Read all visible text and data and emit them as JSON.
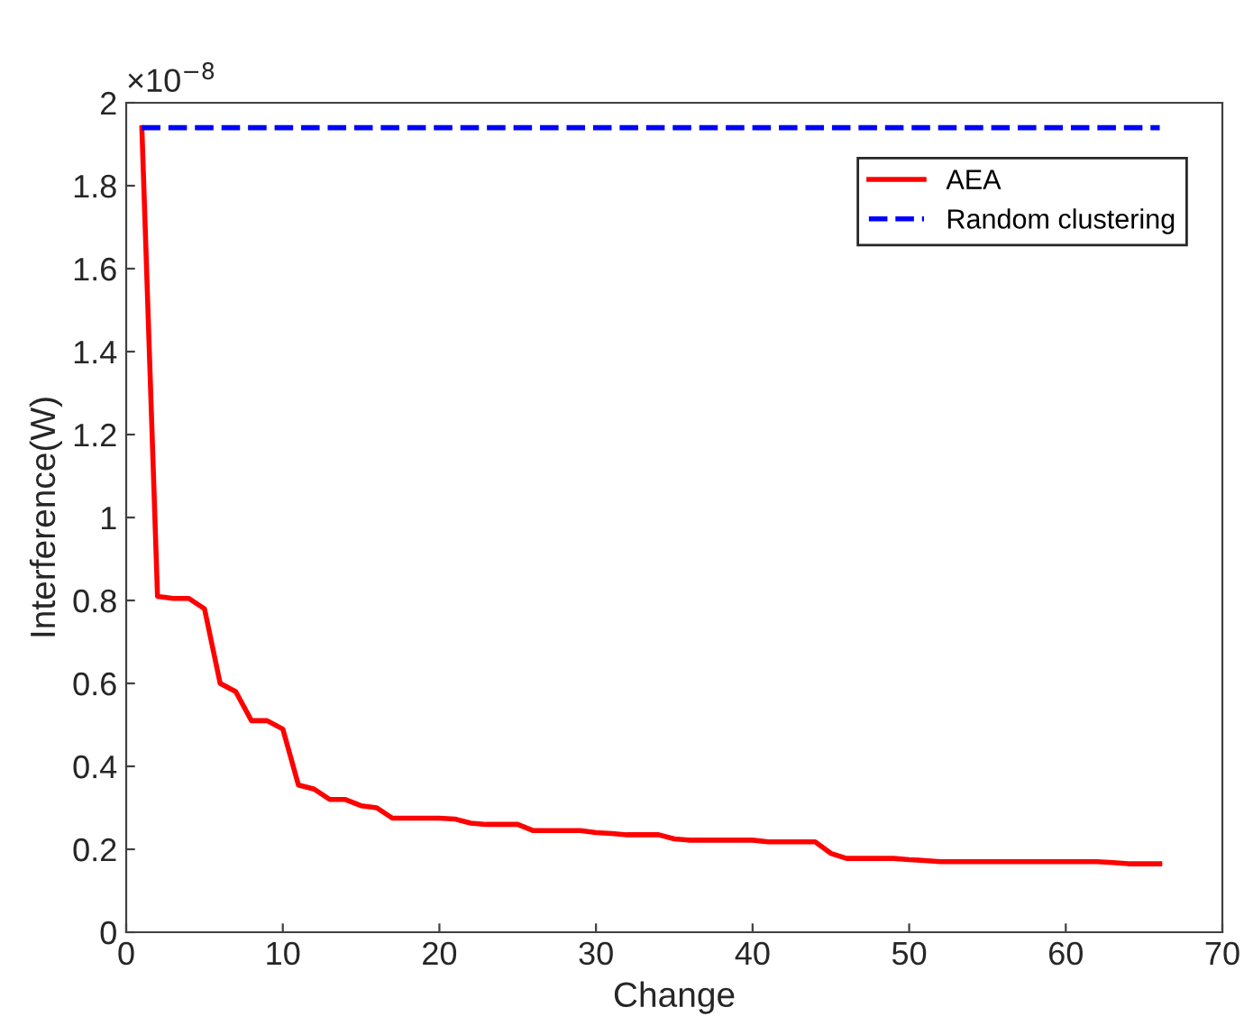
{
  "chart_data": {
    "type": "line",
    "xlabel": "Change",
    "ylabel": "Interference(W)",
    "annotations": [
      "×10$^{−8}$"
    ],
    "xlim": [
      0,
      70
    ],
    "xticks": [
      0,
      10,
      20,
      30,
      40,
      50,
      60,
      70
    ],
    "ylim": [
      0,
      2
    ],
    "yticks": [
      0,
      0.2,
      0.4,
      0.6,
      0.8,
      1,
      1.2,
      1.4,
      1.6,
      1.8,
      2
    ],
    "x": [
      1,
      2,
      3,
      4,
      5,
      6,
      7,
      8,
      9,
      10,
      11,
      12,
      13,
      14,
      15,
      16,
      17,
      18,
      19,
      20,
      21,
      22,
      23,
      24,
      25,
      26,
      27,
      28,
      29,
      30,
      31,
      32,
      33,
      34,
      35,
      36,
      37,
      38,
      39,
      40,
      41,
      42,
      43,
      44,
      45,
      46,
      47,
      48,
      49,
      50,
      51,
      52,
      53,
      54,
      55,
      56,
      57,
      58,
      59,
      60,
      61,
      62,
      63,
      64,
      65,
      66
    ],
    "series": [
      {
        "name": "AEA",
        "color": "#ff0000",
        "line_style": "solid",
        "values": [
          1.94,
          0.81,
          0.805,
          0.805,
          0.78,
          0.6,
          0.58,
          0.51,
          0.51,
          0.49,
          0.355,
          0.345,
          0.32,
          0.32,
          0.305,
          0.3,
          0.275,
          0.275,
          0.275,
          0.275,
          0.273,
          0.263,
          0.26,
          0.26,
          0.26,
          0.245,
          0.245,
          0.245,
          0.245,
          0.24,
          0.238,
          0.235,
          0.235,
          0.235,
          0.225,
          0.222,
          0.222,
          0.222,
          0.222,
          0.222,
          0.218,
          0.218,
          0.218,
          0.218,
          0.19,
          0.178,
          0.178,
          0.178,
          0.178,
          0.175,
          0.173,
          0.17,
          0.17,
          0.17,
          0.17,
          0.17,
          0.17,
          0.17,
          0.17,
          0.17,
          0.17,
          0.17,
          0.168,
          0.165,
          0.165,
          0.165
        ]
      },
      {
        "name": "Random clustering",
        "color": "#0000ff",
        "line_style": "dashed",
        "values": [
          1.94,
          1.94,
          1.94,
          1.94,
          1.94,
          1.94,
          1.94,
          1.94,
          1.94,
          1.94,
          1.94,
          1.94,
          1.94,
          1.94,
          1.94,
          1.94,
          1.94,
          1.94,
          1.94,
          1.94,
          1.94,
          1.94,
          1.94,
          1.94,
          1.94,
          1.94,
          1.94,
          1.94,
          1.94,
          1.94,
          1.94,
          1.94,
          1.94,
          1.94,
          1.94,
          1.94,
          1.94,
          1.94,
          1.94,
          1.94,
          1.94,
          1.94,
          1.94,
          1.94,
          1.94,
          1.94,
          1.94,
          1.94,
          1.94,
          1.94,
          1.94,
          1.94,
          1.94,
          1.94,
          1.94,
          1.94,
          1.94,
          1.94,
          1.94,
          1.94,
          1.94,
          1.94,
          1.94,
          1.94,
          1.94,
          1.94
        ]
      }
    ],
    "legend": "top right",
    "grid": false
  }
}
